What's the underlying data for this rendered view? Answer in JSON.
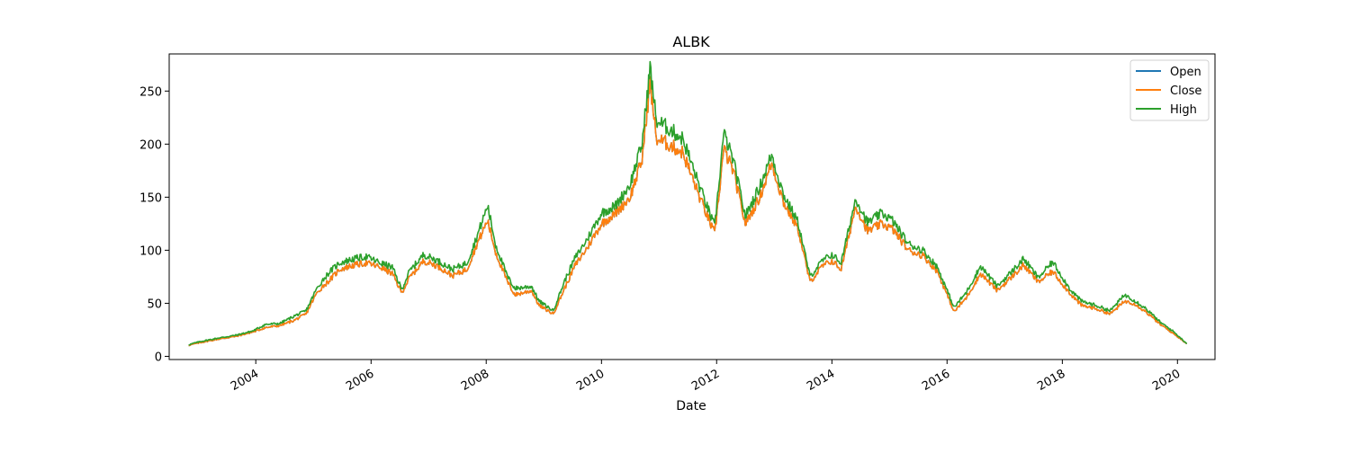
{
  "chart_data": {
    "type": "line",
    "title": "ALBK",
    "xlabel": "Date",
    "ylabel": "",
    "xlim": [
      "2002-07-01",
      "2020-08-26"
    ],
    "ylim": [
      -3,
      285
    ],
    "x_ticks": [
      "2004",
      "2006",
      "2008",
      "2010",
      "2012",
      "2014",
      "2016",
      "2018",
      "2020"
    ],
    "y_ticks": [
      0,
      50,
      100,
      150,
      200,
      250
    ],
    "grid": false,
    "legend": "top-right",
    "series": [
      {
        "name": "Open",
        "color": "#1f77b4",
        "points": [
          [
            "2002-11-01",
            10.5
          ],
          [
            "2003-01-15",
            13
          ],
          [
            "2003-05-01",
            16
          ],
          [
            "2003-09-01",
            19
          ],
          [
            "2003-12-15",
            23
          ],
          [
            "2004-03-01",
            27
          ],
          [
            "2004-06-01",
            29
          ],
          [
            "2004-09-01",
            34
          ],
          [
            "2004-11-15",
            40
          ],
          [
            "2005-01-15",
            58
          ],
          [
            "2005-03-01",
            66
          ],
          [
            "2005-04-15",
            72
          ],
          [
            "2005-06-15",
            82
          ],
          [
            "2005-09-15",
            86
          ],
          [
            "2005-12-01",
            88
          ],
          [
            "2006-03-01",
            84
          ],
          [
            "2006-05-15",
            78
          ],
          [
            "2006-07-15",
            60
          ],
          [
            "2006-09-01",
            74
          ],
          [
            "2006-12-01",
            90
          ],
          [
            "2007-03-01",
            85
          ],
          [
            "2007-06-01",
            76
          ],
          [
            "2007-09-01",
            82
          ],
          [
            "2007-11-01",
            105
          ],
          [
            "2008-01-10",
            128
          ],
          [
            "2008-03-01",
            98
          ],
          [
            "2008-05-15",
            70
          ],
          [
            "2008-07-01",
            58
          ],
          [
            "2008-10-15",
            62
          ],
          [
            "2008-12-01",
            48
          ],
          [
            "2009-03-01",
            40
          ],
          [
            "2009-05-15",
            65
          ],
          [
            "2009-07-15",
            85
          ],
          [
            "2009-10-01",
            102
          ],
          [
            "2010-01-01",
            125
          ],
          [
            "2010-04-01",
            135
          ],
          [
            "2010-07-01",
            150
          ],
          [
            "2010-09-15",
            185
          ],
          [
            "2010-11-05",
            258
          ],
          [
            "2010-12-15",
            205
          ],
          [
            "2011-03-01",
            200
          ],
          [
            "2011-06-01",
            192
          ],
          [
            "2011-09-15",
            150
          ],
          [
            "2011-12-20",
            115
          ],
          [
            "2012-02-15",
            195
          ],
          [
            "2012-04-15",
            175
          ],
          [
            "2012-07-01",
            125
          ],
          [
            "2012-10-01",
            150
          ],
          [
            "2012-12-15",
            182
          ],
          [
            "2013-03-01",
            145
          ],
          [
            "2013-06-01",
            120
          ],
          [
            "2013-08-15",
            70
          ],
          [
            "2013-11-01",
            85
          ],
          [
            "2014-01-01",
            90
          ],
          [
            "2014-03-01",
            82
          ],
          [
            "2014-06-01",
            142
          ],
          [
            "2014-08-15",
            118
          ],
          [
            "2014-11-15",
            125
          ],
          [
            "2015-01-20",
            120
          ],
          [
            "2015-05-01",
            100
          ],
          [
            "2015-08-01",
            95
          ],
          [
            "2015-11-01",
            80
          ],
          [
            "2016-02-15",
            42
          ],
          [
            "2016-05-01",
            55
          ],
          [
            "2016-08-01",
            78
          ],
          [
            "2016-11-15",
            62
          ],
          [
            "2017-02-15",
            75
          ],
          [
            "2017-05-01",
            86
          ],
          [
            "2017-08-01",
            70
          ],
          [
            "2017-11-01",
            80
          ],
          [
            "2018-02-15",
            60
          ],
          [
            "2018-05-01",
            48
          ],
          [
            "2018-08-01",
            45
          ],
          [
            "2018-11-01",
            40
          ],
          [
            "2019-02-01",
            52
          ],
          [
            "2019-04-01",
            50
          ],
          [
            "2019-06-15",
            42
          ],
          [
            "2019-09-15",
            30
          ],
          [
            "2019-12-01",
            22
          ],
          [
            "2020-03-01",
            12
          ]
        ]
      },
      {
        "name": "Close",
        "color": "#ff7f0e",
        "points": [
          [
            "2002-11-01",
            10.5
          ],
          [
            "2003-01-15",
            13
          ],
          [
            "2003-05-01",
            16
          ],
          [
            "2003-09-01",
            19
          ],
          [
            "2003-12-15",
            23
          ],
          [
            "2004-03-01",
            27
          ],
          [
            "2004-06-01",
            29
          ],
          [
            "2004-09-01",
            34
          ],
          [
            "2004-11-15",
            40
          ],
          [
            "2005-01-15",
            58
          ],
          [
            "2005-03-01",
            66
          ],
          [
            "2005-04-15",
            72
          ],
          [
            "2005-06-15",
            82
          ],
          [
            "2005-09-15",
            86
          ],
          [
            "2005-12-01",
            88
          ],
          [
            "2006-03-01",
            84
          ],
          [
            "2006-05-15",
            78
          ],
          [
            "2006-07-15",
            60
          ],
          [
            "2006-09-01",
            74
          ],
          [
            "2006-12-01",
            90
          ],
          [
            "2007-03-01",
            85
          ],
          [
            "2007-06-01",
            76
          ],
          [
            "2007-09-01",
            82
          ],
          [
            "2007-11-01",
            105
          ],
          [
            "2008-01-10",
            128
          ],
          [
            "2008-03-01",
            98
          ],
          [
            "2008-05-15",
            70
          ],
          [
            "2008-07-01",
            58
          ],
          [
            "2008-10-15",
            62
          ],
          [
            "2008-12-01",
            48
          ],
          [
            "2009-03-01",
            40
          ],
          [
            "2009-05-15",
            65
          ],
          [
            "2009-07-15",
            85
          ],
          [
            "2009-10-01",
            102
          ],
          [
            "2010-01-01",
            125
          ],
          [
            "2010-04-01",
            135
          ],
          [
            "2010-07-01",
            150
          ],
          [
            "2010-09-15",
            185
          ],
          [
            "2010-11-05",
            258
          ],
          [
            "2010-12-15",
            205
          ],
          [
            "2011-03-01",
            200
          ],
          [
            "2011-06-01",
            192
          ],
          [
            "2011-09-15",
            150
          ],
          [
            "2011-12-20",
            115
          ],
          [
            "2012-02-15",
            195
          ],
          [
            "2012-04-15",
            175
          ],
          [
            "2012-07-01",
            125
          ],
          [
            "2012-10-01",
            150
          ],
          [
            "2012-12-15",
            182
          ],
          [
            "2013-03-01",
            145
          ],
          [
            "2013-06-01",
            120
          ],
          [
            "2013-08-15",
            70
          ],
          [
            "2013-11-01",
            85
          ],
          [
            "2014-01-01",
            90
          ],
          [
            "2014-03-01",
            82
          ],
          [
            "2014-06-01",
            142
          ],
          [
            "2014-08-15",
            118
          ],
          [
            "2014-11-15",
            125
          ],
          [
            "2015-01-20",
            120
          ],
          [
            "2015-05-01",
            100
          ],
          [
            "2015-08-01",
            95
          ],
          [
            "2015-11-01",
            80
          ],
          [
            "2016-02-15",
            42
          ],
          [
            "2016-05-01",
            55
          ],
          [
            "2016-08-01",
            78
          ],
          [
            "2016-11-15",
            62
          ],
          [
            "2017-02-15",
            75
          ],
          [
            "2017-05-01",
            86
          ],
          [
            "2017-08-01",
            70
          ],
          [
            "2017-11-01",
            80
          ],
          [
            "2018-02-15",
            60
          ],
          [
            "2018-05-01",
            48
          ],
          [
            "2018-08-01",
            45
          ],
          [
            "2018-11-01",
            40
          ],
          [
            "2019-02-01",
            52
          ],
          [
            "2019-04-01",
            50
          ],
          [
            "2019-06-15",
            42
          ],
          [
            "2019-09-15",
            30
          ],
          [
            "2019-12-01",
            22
          ],
          [
            "2020-03-01",
            12
          ]
        ]
      },
      {
        "name": "High",
        "color": "#2ca02c",
        "points": [
          [
            "2002-11-01",
            11
          ],
          [
            "2003-01-15",
            14
          ],
          [
            "2003-05-01",
            17
          ],
          [
            "2003-09-01",
            20
          ],
          [
            "2003-12-15",
            24
          ],
          [
            "2004-03-01",
            30
          ],
          [
            "2004-06-01",
            31
          ],
          [
            "2004-09-01",
            38
          ],
          [
            "2004-11-15",
            43
          ],
          [
            "2005-01-15",
            62
          ],
          [
            "2005-03-01",
            72
          ],
          [
            "2005-04-15",
            80
          ],
          [
            "2005-06-15",
            88
          ],
          [
            "2005-09-15",
            92
          ],
          [
            "2005-12-01",
            94
          ],
          [
            "2006-03-01",
            88
          ],
          [
            "2006-05-15",
            84
          ],
          [
            "2006-07-15",
            63
          ],
          [
            "2006-09-01",
            80
          ],
          [
            "2006-12-01",
            96
          ],
          [
            "2007-03-01",
            90
          ],
          [
            "2007-06-01",
            82
          ],
          [
            "2007-09-01",
            88
          ],
          [
            "2007-11-01",
            112
          ],
          [
            "2008-01-10",
            142
          ],
          [
            "2008-03-01",
            105
          ],
          [
            "2008-05-15",
            75
          ],
          [
            "2008-07-01",
            64
          ],
          [
            "2008-10-15",
            66
          ],
          [
            "2008-12-01",
            52
          ],
          [
            "2009-03-01",
            43
          ],
          [
            "2009-05-15",
            72
          ],
          [
            "2009-07-15",
            92
          ],
          [
            "2009-10-01",
            110
          ],
          [
            "2010-01-01",
            135
          ],
          [
            "2010-04-01",
            142
          ],
          [
            "2010-07-01",
            162
          ],
          [
            "2010-09-15",
            200
          ],
          [
            "2010-11-05",
            272
          ],
          [
            "2010-12-15",
            222
          ],
          [
            "2011-03-01",
            215
          ],
          [
            "2011-06-01",
            205
          ],
          [
            "2011-09-15",
            160
          ],
          [
            "2011-12-20",
            122
          ],
          [
            "2012-02-15",
            210
          ],
          [
            "2012-04-15",
            185
          ],
          [
            "2012-07-01",
            132
          ],
          [
            "2012-10-01",
            160
          ],
          [
            "2012-12-15",
            190
          ],
          [
            "2013-03-01",
            152
          ],
          [
            "2013-06-01",
            126
          ],
          [
            "2013-08-15",
            75
          ],
          [
            "2013-11-01",
            90
          ],
          [
            "2014-01-01",
            96
          ],
          [
            "2014-03-01",
            88
          ],
          [
            "2014-06-01",
            149
          ],
          [
            "2014-08-15",
            126
          ],
          [
            "2014-11-15",
            135
          ],
          [
            "2015-01-20",
            128
          ],
          [
            "2015-05-01",
            106
          ],
          [
            "2015-08-01",
            100
          ],
          [
            "2015-11-01",
            84
          ],
          [
            "2016-02-15",
            46
          ],
          [
            "2016-05-01",
            60
          ],
          [
            "2016-08-01",
            85
          ],
          [
            "2016-11-15",
            66
          ],
          [
            "2017-02-15",
            80
          ],
          [
            "2017-05-01",
            92
          ],
          [
            "2017-08-01",
            74
          ],
          [
            "2017-11-01",
            89
          ],
          [
            "2018-02-15",
            64
          ],
          [
            "2018-05-01",
            52
          ],
          [
            "2018-08-01",
            48
          ],
          [
            "2018-11-01",
            43
          ],
          [
            "2019-02-01",
            58
          ],
          [
            "2019-04-01",
            53
          ],
          [
            "2019-06-15",
            45
          ],
          [
            "2019-09-15",
            32
          ],
          [
            "2019-12-01",
            24
          ],
          [
            "2020-03-01",
            12
          ]
        ]
      }
    ]
  }
}
